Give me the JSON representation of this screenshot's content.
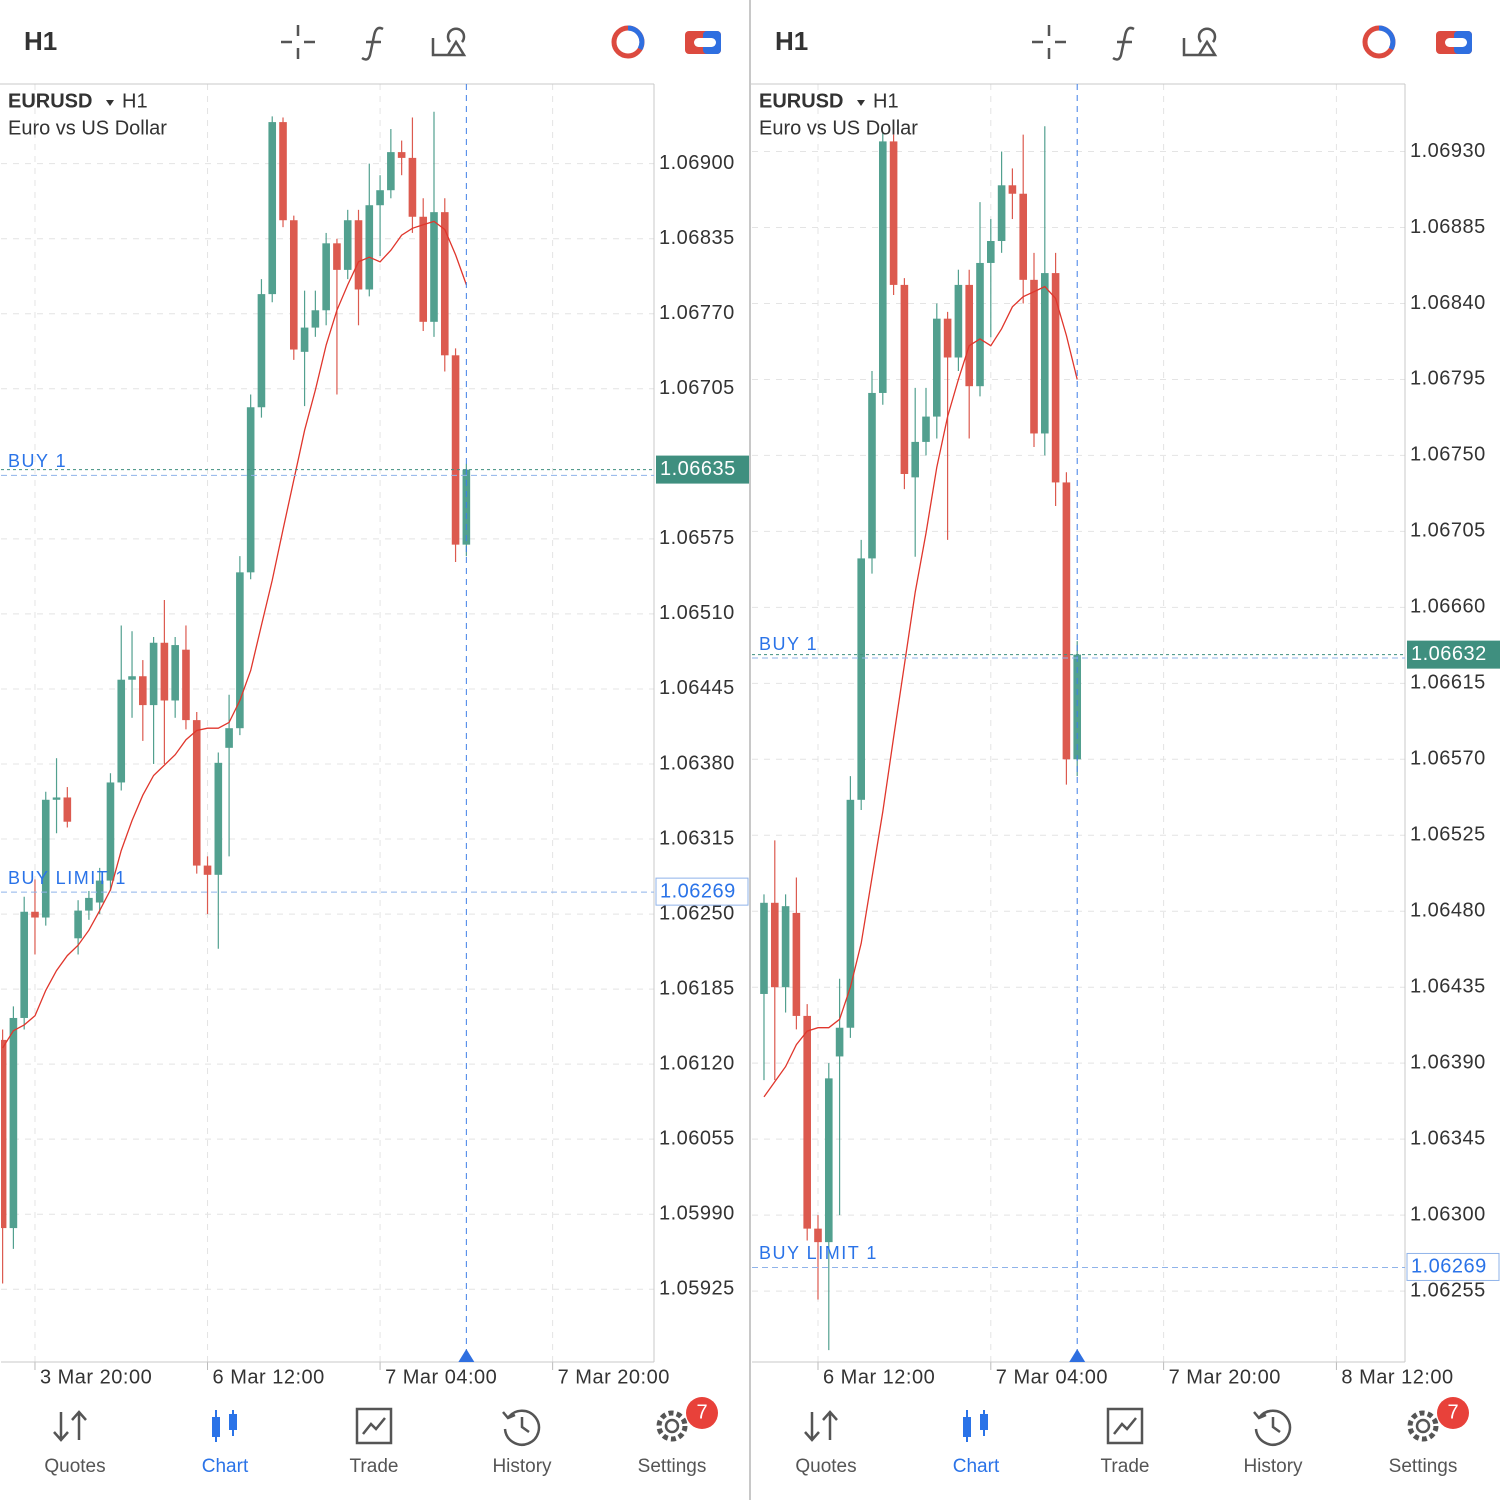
{
  "panels": [
    {
      "timeframe": "H1",
      "tabs": [
        "Quotes",
        "Chart",
        "Trade",
        "History",
        "Settings"
      ],
      "badge": 7
    },
    {
      "timeframe": "H1",
      "tabs": [
        "Quotes",
        "Chart",
        "Trade",
        "History",
        "Settings"
      ],
      "badge": 7
    }
  ],
  "chart_data": [
    {
      "type": "candlestick",
      "symbol": "EURUSD",
      "timeframe": "H1",
      "description": "Euro vs US Dollar",
      "up_color": "#52a08f",
      "down_color": "#dc5a4f",
      "open": [
        1.06141,
        1.05978,
        1.0616,
        1.06252,
        1.06247,
        1.06349,
        1.06351,
        1.06229,
        1.06253,
        1.0626,
        1.06279,
        1.06364,
        1.06453,
        1.06456,
        1.06431,
        1.06485,
        1.06435,
        1.06479,
        1.06418,
        1.06292,
        1.06284,
        1.06394,
        1.06411,
        1.06546,
        1.06689,
        1.06787,
        1.06936,
        1.06851,
        1.06737,
        1.06758,
        1.06773,
        1.06831,
        1.06808,
        1.06851,
        1.06791,
        1.06864,
        1.06877,
        1.0691,
        1.06905,
        1.06854,
        1.06763,
        1.06858,
        1.06734,
        1.0657
      ],
      "high": [
        1.0615,
        1.0617,
        1.06265,
        1.0628,
        1.06356,
        1.06385,
        1.0636,
        1.06262,
        1.0627,
        1.0629,
        1.06372,
        1.065,
        1.06495,
        1.0647,
        1.0649,
        1.06522,
        1.0649,
        1.065,
        1.06425,
        1.063,
        1.0639,
        1.0644,
        1.0656,
        1.067,
        1.068,
        1.06941,
        1.0694,
        1.06855,
        1.0679,
        1.0679,
        1.0684,
        1.06835,
        1.0686,
        1.0686,
        1.069,
        1.0689,
        1.0693,
        1.0692,
        1.0694,
        1.0687,
        1.06945,
        1.0687,
        1.0674,
        1.0664
      ],
      "low": [
        1.0593,
        1.0596,
        1.0615,
        1.06215,
        1.0624,
        1.0632,
        1.06325,
        1.06215,
        1.06245,
        1.0625,
        1.0627,
        1.06357,
        1.0642,
        1.064,
        1.0638,
        1.0638,
        1.0642,
        1.0641,
        1.06285,
        1.0625,
        1.0622,
        1.063,
        1.06405,
        1.0654,
        1.0668,
        1.0678,
        1.06845,
        1.0673,
        1.0669,
        1.0675,
        1.0676,
        1.067,
        1.068,
        1.0676,
        1.06785,
        1.0682,
        1.0687,
        1.0689,
        1.0684,
        1.06755,
        1.0675,
        1.0672,
        1.06555,
        1.0656
      ],
      "close": [
        1.05978,
        1.0616,
        1.06252,
        1.06247,
        1.06349,
        1.06351,
        1.0633,
        1.06253,
        1.06264,
        1.06279,
        1.06364,
        1.06453,
        1.06456,
        1.06431,
        1.06485,
        1.06435,
        1.06483,
        1.06418,
        1.06292,
        1.06284,
        1.06381,
        1.06411,
        1.06546,
        1.06689,
        1.06787,
        1.06936,
        1.06851,
        1.06739,
        1.06758,
        1.06773,
        1.06831,
        1.06808,
        1.06851,
        1.06791,
        1.06864,
        1.06877,
        1.0691,
        1.06905,
        1.06854,
        1.06763,
        1.06858,
        1.06734,
        1.0657,
        1.06635
      ],
      "ma": {
        "color": "#e0362c",
        "values": [
          1.06134,
          1.06149,
          1.06154,
          1.06162,
          1.06184,
          1.06201,
          1.06214,
          1.06223,
          1.06236,
          1.06253,
          1.06271,
          1.06305,
          1.06331,
          1.06353,
          1.0637,
          1.06379,
          1.06388,
          1.06401,
          1.06409,
          1.06411,
          1.06411,
          1.06416,
          1.06435,
          1.06461,
          1.065,
          1.06539,
          1.06583,
          1.06626,
          1.06669,
          1.06704,
          1.06743,
          1.06773,
          1.06795,
          1.06815,
          1.06819,
          1.06815,
          1.06825,
          1.06838,
          1.06844,
          1.06847,
          1.0685,
          1.06843,
          1.06821,
          1.06795
        ]
      },
      "bid": 1.06635,
      "orders": [
        {
          "label": "BUY 1",
          "price": 1.0663
        },
        {
          "label": "BUY LIMIT 1",
          "price": 1.06269
        }
      ],
      "ylim": [
        1.05862,
        1.06969
      ],
      "xlim": [
        -0.15,
        60.4
      ],
      "yticks": [
        {
          "value": 1.069,
          "label": "1.06900"
        },
        1.06835,
        {
          "value": 1.0677,
          "label": "1.06770"
        },
        1.06705,
        1.06575,
        {
          "value": 1.0651,
          "label": "1.06510"
        },
        1.06445,
        {
          "value": 1.0638,
          "label": "1.06380"
        },
        1.06315,
        {
          "value": 1.0625,
          "label": "1.06250"
        },
        1.06185,
        {
          "value": 1.0612,
          "label": "1.06120"
        },
        1.06055,
        {
          "value": 1.0599,
          "label": "1.05990"
        },
        1.05925
      ],
      "xticks": [
        {
          "value": 3,
          "label": "3 Mar 20:00"
        },
        {
          "value": 19,
          "label": "6 Mar 12:00"
        },
        {
          "value": 35,
          "label": "7 Mar 04:00"
        },
        {
          "value": 51,
          "label": "7 Mar 20:00"
        }
      ],
      "grid": true
    },
    {
      "type": "candlestick",
      "symbol": "EURUSD",
      "timeframe": "H1",
      "description": "Euro vs US Dollar",
      "up_color": "#52a08f",
      "down_color": "#dc5a4f",
      "open": [
        1.06431,
        1.06485,
        1.06435,
        1.06479,
        1.06418,
        1.06292,
        1.06284,
        1.06394,
        1.06411,
        1.06546,
        1.06689,
        1.06787,
        1.06936,
        1.06851,
        1.06737,
        1.06758,
        1.06773,
        1.06831,
        1.06808,
        1.06851,
        1.06791,
        1.06864,
        1.06877,
        1.0691,
        1.06905,
        1.06854,
        1.06763,
        1.06858,
        1.06734,
        1.0657
      ],
      "high": [
        1.0649,
        1.06522,
        1.0649,
        1.065,
        1.06425,
        1.063,
        1.0639,
        1.0644,
        1.0656,
        1.067,
        1.068,
        1.06941,
        1.0694,
        1.06855,
        1.0679,
        1.0679,
        1.0684,
        1.06835,
        1.0686,
        1.0686,
        1.069,
        1.0689,
        1.0693,
        1.0692,
        1.0694,
        1.0687,
        1.06945,
        1.0687,
        1.0674,
        1.0664
      ],
      "low": [
        1.0638,
        1.0638,
        1.0642,
        1.0641,
        1.06285,
        1.0625,
        1.0622,
        1.063,
        1.06405,
        1.0654,
        1.0668,
        1.0678,
        1.06845,
        1.0673,
        1.0669,
        1.0675,
        1.0676,
        1.067,
        1.068,
        1.0676,
        1.06785,
        1.0682,
        1.0687,
        1.0689,
        1.0684,
        1.06755,
        1.0675,
        1.0672,
        1.06555,
        1.0656
      ],
      "close": [
        1.06485,
        1.06435,
        1.06483,
        1.06418,
        1.06292,
        1.06284,
        1.06381,
        1.06411,
        1.06546,
        1.06689,
        1.06787,
        1.06936,
        1.06851,
        1.06739,
        1.06758,
        1.06773,
        1.06831,
        1.06808,
        1.06851,
        1.06791,
        1.06864,
        1.06877,
        1.0691,
        1.06905,
        1.06854,
        1.06763,
        1.06858,
        1.06734,
        1.0657,
        1.06632
      ],
      "ma": {
        "color": "#e0362c",
        "values": [
          1.0637,
          1.06379,
          1.06388,
          1.06401,
          1.06409,
          1.06411,
          1.06411,
          1.06416,
          1.06435,
          1.06461,
          1.065,
          1.06539,
          1.06583,
          1.06626,
          1.06669,
          1.06704,
          1.06743,
          1.06773,
          1.06795,
          1.06815,
          1.06819,
          1.06815,
          1.06825,
          1.06838,
          1.06844,
          1.06847,
          1.0685,
          1.06843,
          1.06821,
          1.06795
        ]
      },
      "bid": 1.06632,
      "orders": [
        {
          "label": "BUY 1",
          "price": 1.0663
        },
        {
          "label": "BUY LIMIT 1",
          "price": 1.06269
        }
      ],
      "ylim": [
        1.06213,
        1.0697
      ],
      "xlim": [
        -1.11,
        59.35
      ],
      "yticks": [
        {
          "value": 1.0693,
          "label": "1.06930"
        },
        1.06885,
        {
          "value": 1.0684,
          "label": "1.06840"
        },
        1.06795,
        {
          "value": 1.0675,
          "label": "1.06750"
        },
        1.06705,
        {
          "value": 1.0666,
          "label": "1.06660"
        },
        1.06615,
        {
          "value": 1.0657,
          "label": "1.06570"
        },
        1.06525,
        {
          "value": 1.0648,
          "label": "1.06480"
        },
        1.06435,
        {
          "value": 1.0639,
          "label": "1.06390"
        },
        1.06345,
        {
          "value": 1.063,
          "label": "1.06300"
        },
        1.06255
      ],
      "xticks": [
        {
          "value": 5,
          "label": "6 Mar 12:00"
        },
        {
          "value": 21,
          "label": "7 Mar 04:00"
        },
        {
          "value": 37,
          "label": "7 Mar 20:00"
        },
        {
          "value": 53,
          "label": "8 Mar 12:00"
        }
      ],
      "grid": true
    }
  ]
}
